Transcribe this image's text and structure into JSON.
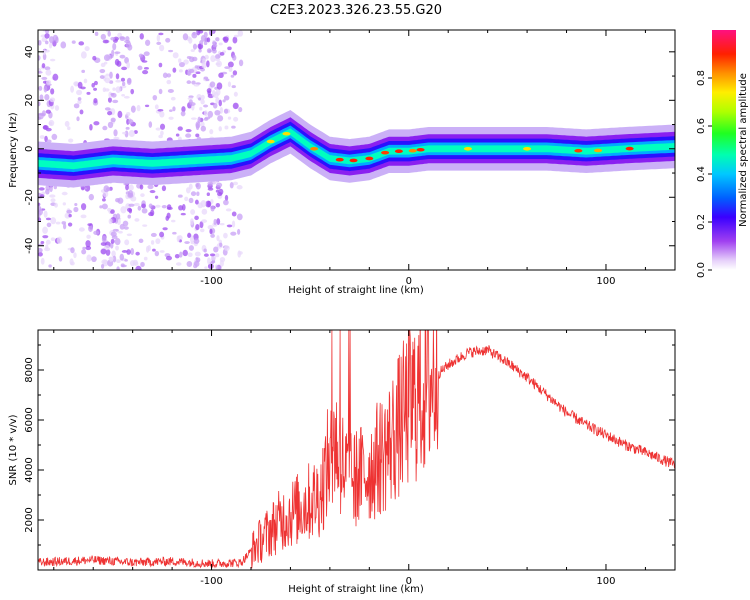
{
  "title": "C2E3.2023.326.23.55.G20",
  "chart_data": [
    {
      "type": "heatmap",
      "xlabel": "Height of straight line (km)",
      "ylabel": "Frequency (Hz)",
      "xlim": [
        -188,
        135
      ],
      "ylim": [
        -50,
        49
      ],
      "x_ticks": [
        -100,
        0,
        100
      ],
      "y_ticks": [
        -40,
        -20,
        0,
        20,
        40
      ],
      "grid": false,
      "ridge": {
        "x": [
          -188,
          -170,
          -150,
          -130,
          -110,
          -90,
          -80,
          -70,
          -60,
          -50,
          -40,
          -30,
          -20,
          -10,
          0,
          10,
          30,
          50,
          70,
          90,
          110,
          135
        ],
        "y": [
          -6,
          -7,
          -5,
          -6,
          -5,
          -4,
          -2,
          3,
          7,
          1,
          -4,
          -5,
          -4,
          -1,
          -1,
          0,
          0,
          0,
          0,
          -1,
          0,
          1
        ]
      }
    },
    {
      "type": "line",
      "xlabel": "Height of straight line (km)",
      "ylabel": "SNR (10 * v/v)",
      "xlim": [
        -188,
        135
      ],
      "ylim": [
        0,
        9600
      ],
      "x_ticks": [
        -100,
        0,
        100
      ],
      "y_ticks": [
        2000,
        4000,
        6000,
        8000
      ],
      "grid": false,
      "color": "#ee3333",
      "envelope": {
        "x": [
          -188,
          -160,
          -140,
          -120,
          -100,
          -85,
          -75,
          -65,
          -55,
          -45,
          -38,
          -30,
          -20,
          -10,
          0,
          10,
          20,
          30,
          40,
          50,
          60,
          70,
          80,
          90,
          100,
          110,
          120,
          135
        ],
        "y": [
          300,
          400,
          300,
          350,
          250,
          300,
          1200,
          2000,
          2500,
          3000,
          5200,
          3500,
          4000,
          5000,
          6500,
          7500,
          8200,
          8700,
          8800,
          8300,
          7700,
          7000,
          6300,
          5800,
          5400,
          5000,
          4700,
          4200
        ]
      }
    }
  ],
  "colorbar": {
    "label": "Normalized spectral amplitude",
    "ticks": [
      "0.0",
      "0.2",
      "0.4",
      "0.6",
      "0.8"
    ],
    "range": [
      0,
      1
    ]
  }
}
